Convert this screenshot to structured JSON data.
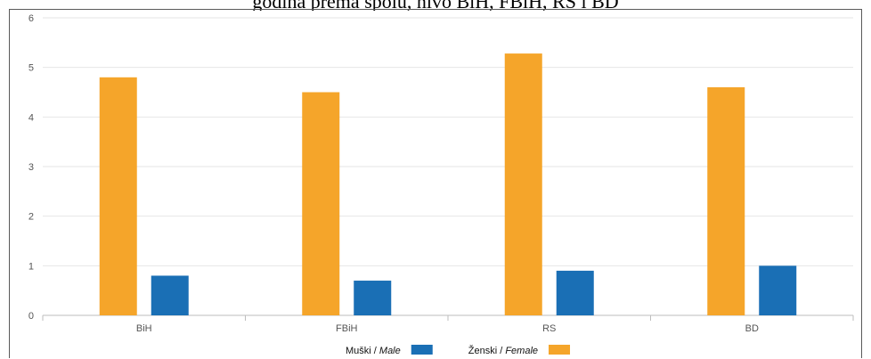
{
  "chart_data": {
    "type": "bar",
    "title": "godina prema spolu, nivo BiH, FBiH, RS i BD",
    "categories": [
      "BiH",
      "FBiH",
      "RS",
      "BD"
    ],
    "series": [
      {
        "name_prefix": "Ženski / ",
        "name_italic": "Female",
        "color": "#F5A52A",
        "values": [
          4.8,
          4.5,
          5.28,
          4.6
        ]
      },
      {
        "name_prefix": "Muški / ",
        "name_italic": "Male",
        "color": "#1A6FB5",
        "values": [
          0.8,
          0.7,
          0.9,
          1.0
        ]
      }
    ],
    "ylim": [
      0,
      6
    ],
    "yticks": [
      "0",
      "1",
      "2",
      "3",
      "4",
      "5",
      "6"
    ],
    "grid": true,
    "legend_position": "bottom"
  }
}
